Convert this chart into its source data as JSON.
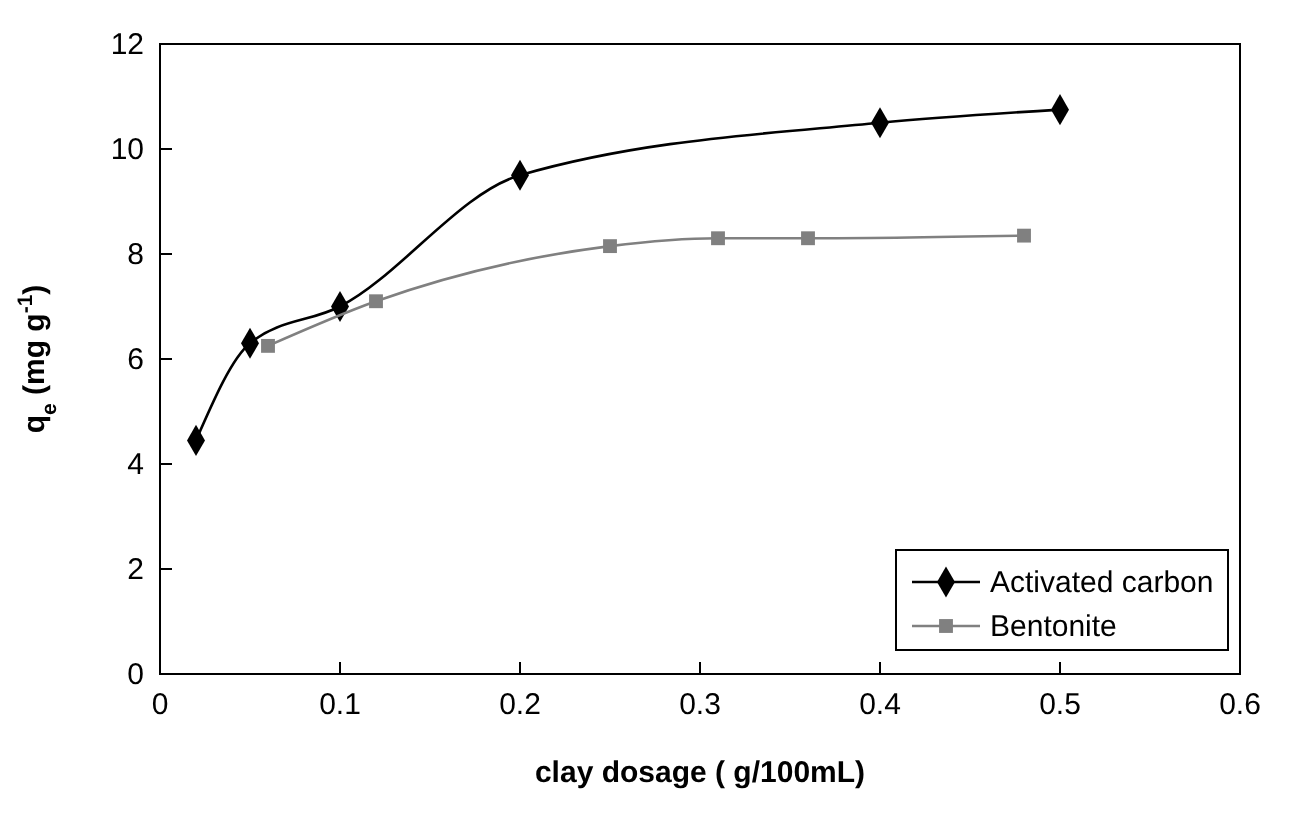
{
  "chart_data": {
    "type": "line",
    "xlabel": "clay dosage ( g/100mL)",
    "ylabel": "q$_{e}$ (mg g$^{-1}$)",
    "xlim": [
      0,
      0.6
    ],
    "xticks": [
      0,
      0.1,
      0.2,
      0.3,
      0.4,
      0.5,
      0.6
    ],
    "ylim": [
      0,
      12
    ],
    "yticks": [
      0,
      2,
      4,
      6,
      8,
      10,
      12
    ],
    "legend": "bottom right",
    "grid": false,
    "series": [
      {
        "name": "Activated carbon",
        "color": "#000000",
        "marker": "diamond",
        "x": [
          0.02,
          0.05,
          0.1,
          0.2,
          0.4,
          0.5
        ],
        "values": [
          4.45,
          6.3,
          7.0,
          9.5,
          10.5,
          10.75
        ]
      },
      {
        "name": "Bentonite",
        "color": "#808080",
        "marker": "square",
        "x": [
          0.06,
          0.12,
          0.25,
          0.31,
          0.36,
          0.48
        ],
        "values": [
          6.25,
          7.1,
          8.15,
          8.3,
          8.3,
          8.35
        ]
      }
    ]
  }
}
